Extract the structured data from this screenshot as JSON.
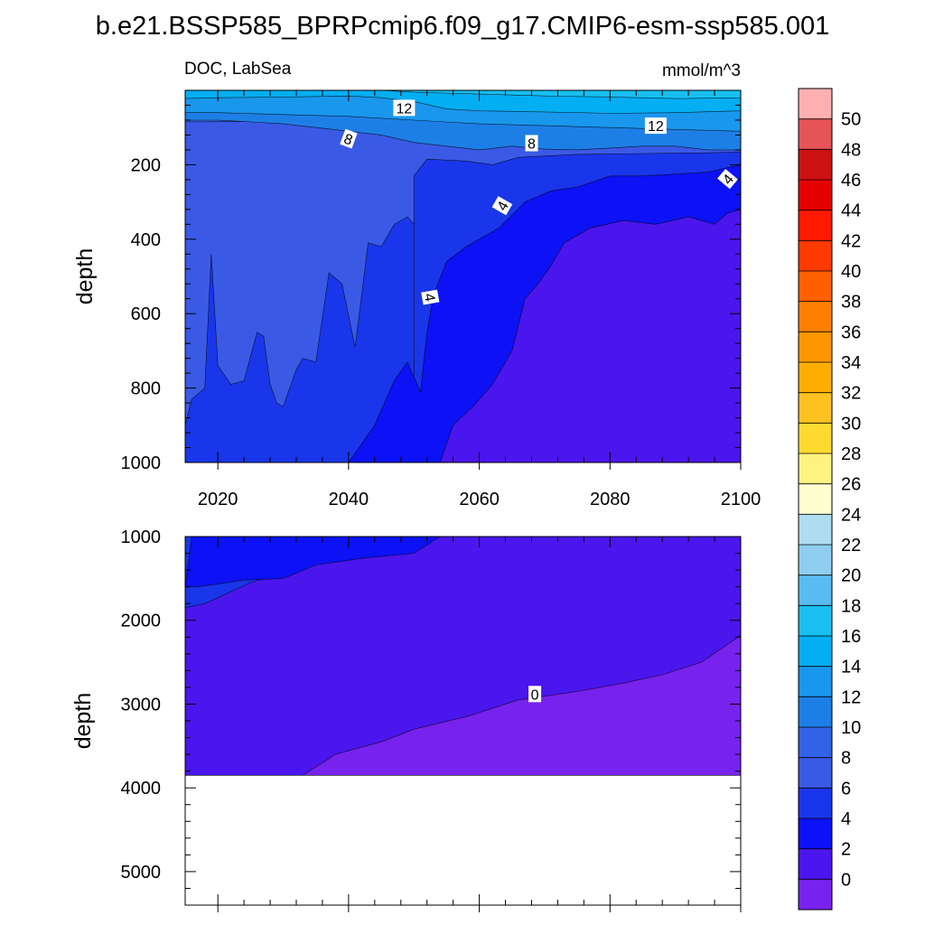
{
  "chart_data": {
    "type": "contour",
    "title": "b.e21.BSSP585_BPRPcmip6.f09_g17.CMIP6-esm-ssp585.001",
    "left_subtitle": "DOC, LabSea",
    "right_subtitle": "mmol/m^3",
    "x_range": [
      2015,
      2100
    ],
    "x_ticks": [
      "2020",
      "2040",
      "2060",
      "2080",
      "2100"
    ],
    "panels": [
      {
        "name": "upper",
        "ylabel": "depth",
        "y_range": [
          0,
          1000
        ],
        "y_ticks": [
          200,
          400,
          600,
          800,
          1000
        ],
        "y_tick_labels": [
          "200",
          "400",
          "600",
          "800",
          "1000"
        ],
        "contour_labels": [
          "12",
          "12",
          "8",
          "8",
          "4",
          "4",
          "4"
        ],
        "regions": [
          {
            "fill_level": 8,
            "color": "#3a5ae6",
            "points": [
              [
                2015,
                85
              ],
              [
                2025,
                84
              ],
              [
                2035,
                80
              ],
              [
                2045,
                82
              ],
              [
                2050,
                90
              ],
              [
                2055,
                95
              ],
              [
                2060,
                90
              ],
              [
                2065,
                88
              ],
              [
                2075,
                84
              ],
              [
                2085,
                80
              ],
              [
                2100,
                80
              ],
              [
                2100,
                1000
              ],
              [
                2015,
                1000
              ]
            ]
          },
          {
            "fill_level": 6,
            "color": "#1a36ea",
            "points": [
              [
                2050,
                1000
              ],
              [
                2050,
                230
              ],
              [
                2052,
                185
              ],
              [
                2058,
                190
              ],
              [
                2062,
                200
              ],
              [
                2066,
                180
              ],
              [
                2075,
                172
              ],
              [
                2085,
                170
              ],
              [
                2095,
                168
              ],
              [
                2100,
                165
              ],
              [
                2100,
                1000
              ]
            ]
          },
          {
            "fill_level": 6,
            "color": "#1a36ea",
            "points": [
              [
                2015,
                900
              ],
              [
                2016,
                830
              ],
              [
                2018,
                800
              ],
              [
                2019,
                440
              ],
              [
                2020,
                740
              ],
              [
                2022,
                790
              ],
              [
                2024,
                780
              ],
              [
                2026,
                650
              ],
              [
                2027,
                660
              ],
              [
                2028,
                790
              ],
              [
                2029,
                840
              ],
              [
                2030,
                850
              ],
              [
                2032,
                750
              ],
              [
                2033,
                720
              ],
              [
                2035,
                730
              ],
              [
                2037,
                490
              ],
              [
                2039,
                520
              ],
              [
                2041,
                690
              ],
              [
                2043,
                410
              ],
              [
                2045,
                420
              ],
              [
                2047,
                360
              ],
              [
                2049,
                340
              ],
              [
                2050,
                360
              ],
              [
                2050,
                1000
              ],
              [
                2015,
                1000
              ]
            ]
          },
          {
            "fill_level": 4,
            "color": "#0c12f5",
            "points": [
              [
                2040,
                1000
              ],
              [
                2044,
                900
              ],
              [
                2047,
                780
              ],
              [
                2049,
                730
              ],
              [
                2051,
                810
              ],
              [
                2052,
                650
              ],
              [
                2053,
                550
              ],
              [
                2055,
                460
              ],
              [
                2058,
                420
              ],
              [
                2060,
                400
              ],
              [
                2063,
                370
              ],
              [
                2067,
                300
              ],
              [
                2071,
                270
              ],
              [
                2075,
                260
              ],
              [
                2080,
                230
              ],
              [
                2085,
                230
              ],
              [
                2090,
                225
              ],
              [
                2095,
                220
              ],
              [
                2100,
                200
              ],
              [
                2100,
                1000
              ]
            ]
          },
          {
            "fill_level": 2,
            "color": "#4a16ed",
            "points": [
              [
                2054,
                1000
              ],
              [
                2056,
                900
              ],
              [
                2059,
                850
              ],
              [
                2062,
                790
              ],
              [
                2065,
                700
              ],
              [
                2067,
                560
              ],
              [
                2069,
                520
              ],
              [
                2071,
                470
              ],
              [
                2073,
                410
              ],
              [
                2077,
                370
              ],
              [
                2082,
                350
              ],
              [
                2087,
                360
              ],
              [
                2092,
                340
              ],
              [
                2096,
                360
              ],
              [
                2098,
                330
              ],
              [
                2100,
                320
              ],
              [
                2100,
                1000
              ]
            ]
          },
          {
            "fill_level": 10,
            "color": "#1d7fe6",
            "points": [
              [
                2015,
                0
              ],
              [
                2100,
                0
              ],
              [
                2100,
                160
              ],
              [
                2095,
                160
              ],
              [
                2090,
                150
              ],
              [
                2085,
                150
              ],
              [
                2080,
                155
              ],
              [
                2075,
                160
              ],
              [
                2070,
                158
              ],
              [
                2065,
                150
              ],
              [
                2060,
                160
              ],
              [
                2055,
                150
              ],
              [
                2050,
                140
              ],
              [
                2045,
                120
              ],
              [
                2040,
                110
              ],
              [
                2035,
                100
              ],
              [
                2030,
                90
              ],
              [
                2025,
                85
              ],
              [
                2020,
                80
              ],
              [
                2015,
                80
              ]
            ]
          },
          {
            "fill_level": 12,
            "color": "#1997ec",
            "points": [
              [
                2015,
                0
              ],
              [
                2100,
                0
              ],
              [
                2100,
                110
              ],
              [
                2090,
                105
              ],
              [
                2080,
                100
              ],
              [
                2070,
                95
              ],
              [
                2060,
                90
              ],
              [
                2050,
                80
              ],
              [
                2040,
                70
              ],
              [
                2030,
                65
              ],
              [
                2020,
                60
              ],
              [
                2015,
                60
              ]
            ]
          },
          {
            "fill_level": 14,
            "color": "#03aef3",
            "points": [
              [
                2015,
                0
              ],
              [
                2100,
                0
              ],
              [
                2100,
                55
              ],
              [
                2090,
                60
              ],
              [
                2080,
                62
              ],
              [
                2070,
                58
              ],
              [
                2060,
                55
              ],
              [
                2055,
                50
              ],
              [
                2050,
                30
              ],
              [
                2045,
                20
              ],
              [
                2040,
                15
              ],
              [
                2030,
                18
              ],
              [
                2020,
                20
              ],
              [
                2015,
                22
              ]
            ]
          },
          {
            "fill_level": 16,
            "color": "#18bff0",
            "points": [
              [
                2045,
                0
              ],
              [
                2100,
                0
              ],
              [
                2100,
                20
              ],
              [
                2090,
                22
              ],
              [
                2080,
                18
              ],
              [
                2070,
                15
              ],
              [
                2060,
                10
              ],
              [
                2050,
                5
              ]
            ]
          }
        ]
      },
      {
        "name": "lower",
        "ylabel": "depth",
        "y_range": [
          1000,
          5400
        ],
        "y_ticks": [
          1000,
          2000,
          3000,
          4000,
          5000
        ],
        "y_tick_labels": [
          "1000",
          "2000",
          "3000",
          "4000",
          "5000"
        ],
        "data_bottom_depth": 3850,
        "contour_labels": [
          "0"
        ],
        "regions": [
          {
            "fill_level": 2,
            "color": "#4a16ed",
            "points": [
              [
                2015,
                1000
              ],
              [
                2100,
                1000
              ],
              [
                2100,
                3850
              ],
              [
                2015,
                3850
              ]
            ]
          },
          {
            "fill_level": 6,
            "color": "#1a36ea",
            "points": [
              [
                2015,
                1000
              ],
              [
                2045,
                1000
              ],
              [
                2040,
                1200
              ],
              [
                2033,
                1350
              ],
              [
                2025,
                1550
              ],
              [
                2018,
                1800
              ],
              [
                2015,
                1850
              ]
            ]
          },
          {
            "fill_level": 4,
            "color": "#0c12f5",
            "points": [
              [
                2016,
                1000
              ],
              [
                2054,
                1000
              ],
              [
                2050,
                1200
              ],
              [
                2042,
                1260
              ],
              [
                2035,
                1340
              ],
              [
                2030,
                1500
              ],
              [
                2024,
                1520
              ],
              [
                2017,
                1600
              ],
              [
                2015,
                1600
              ]
            ]
          },
          {
            "fill_level": 0,
            "color": "#7822ee",
            "points": [
              [
                2033,
                3850
              ],
              [
                2038,
                3600
              ],
              [
                2045,
                3450
              ],
              [
                2050,
                3300
              ],
              [
                2058,
                3150
              ],
              [
                2066,
                2950
              ],
              [
                2075,
                2850
              ],
              [
                2082,
                2750
              ],
              [
                2088,
                2650
              ],
              [
                2094,
                2500
              ],
              [
                2100,
                2180
              ],
              [
                2100,
                3850
              ]
            ]
          }
        ]
      }
    ],
    "colorbar": {
      "levels": [
        "50",
        "48",
        "46",
        "44",
        "42",
        "40",
        "38",
        "36",
        "34",
        "32",
        "30",
        "28",
        "26",
        "24",
        "22",
        "20",
        "18",
        "16",
        "14",
        "12",
        "10",
        "8",
        "6",
        "4",
        "2",
        "0"
      ],
      "colors_top_to_bottom": [
        "#feb0b0",
        "#e55457",
        "#cd1214",
        "#e50000",
        "#ff1a00",
        "#ff3a00",
        "#fe6000",
        "#fe7f00",
        "#fe9600",
        "#feae00",
        "#fec220",
        "#feda30",
        "#fef280",
        "#feffd0",
        "#b0dcf0",
        "#90cef0",
        "#58bcf0",
        "#18bff0",
        "#03aef3",
        "#1997ec",
        "#1d7fe6",
        "#3263e7",
        "#3a5ae6",
        "#1a36ea",
        "#0c12f5",
        "#4a16ed",
        "#7822ee"
      ]
    }
  }
}
